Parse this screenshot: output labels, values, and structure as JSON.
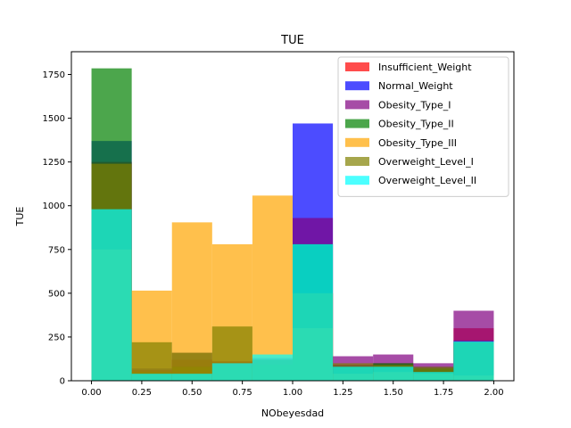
{
  "chart_data": {
    "type": "bar",
    "title": "TUE",
    "xlabel": "NObeyesdad",
    "ylabel": "TUE",
    "xlim": [
      -0.1,
      2.1
    ],
    "ylim": [
      0,
      1880
    ],
    "xticks": [
      0.0,
      0.25,
      0.5,
      0.75,
      1.0,
      1.25,
      1.5,
      1.75,
      2.0
    ],
    "xtick_labels": [
      "0.00",
      "0.25",
      "0.50",
      "0.75",
      "1.00",
      "1.25",
      "1.50",
      "1.75",
      "2.00"
    ],
    "yticks": [
      0,
      250,
      500,
      750,
      1000,
      1250,
      1500,
      1750
    ],
    "ytick_labels": [
      "0",
      "250",
      "500",
      "750",
      "1000",
      "1250",
      "1500",
      "1750"
    ],
    "bin_edges": [
      0.0,
      0.2,
      0.4,
      0.6,
      0.8,
      1.0,
      1.2,
      1.4,
      1.6,
      1.8,
      2.0
    ],
    "alpha": 0.7,
    "legend_position": "top-right",
    "grid": false,
    "series": [
      {
        "name": "Insufficient_Weight",
        "color": "#ff0000",
        "values": [
          1250,
          60,
          120,
          110,
          120,
          500,
          90,
          100,
          60,
          300
        ]
      },
      {
        "name": "Normal_Weight",
        "color": "#0000ff",
        "values": [
          1370,
          70,
          160,
          110,
          130,
          1470,
          90,
          90,
          80,
          230
        ]
      },
      {
        "name": "Obesity_Type_I",
        "color": "#800080",
        "values": [
          1250,
          60,
          120,
          110,
          120,
          930,
          140,
          150,
          100,
          400
        ]
      },
      {
        "name": "Obesity_Type_II",
        "color": "#008000",
        "values": [
          1785,
          50,
          80,
          80,
          90,
          780,
          80,
          100,
          70,
          220
        ]
      },
      {
        "name": "Obesity_Type_III",
        "color": "#ffa500",
        "values": [
          750,
          515,
          905,
          780,
          1058,
          300,
          40,
          50,
          40,
          30
        ]
      },
      {
        "name": "Overweight_Level_I",
        "color": "#808000",
        "values": [
          1240,
          220,
          160,
          310,
          120,
          500,
          100,
          90,
          80,
          220
        ]
      },
      {
        "name": "Overweight_Level_II",
        "color": "#00ffff",
        "values": [
          980,
          40,
          40,
          100,
          150,
          780,
          80,
          80,
          50,
          225
        ]
      }
    ]
  }
}
